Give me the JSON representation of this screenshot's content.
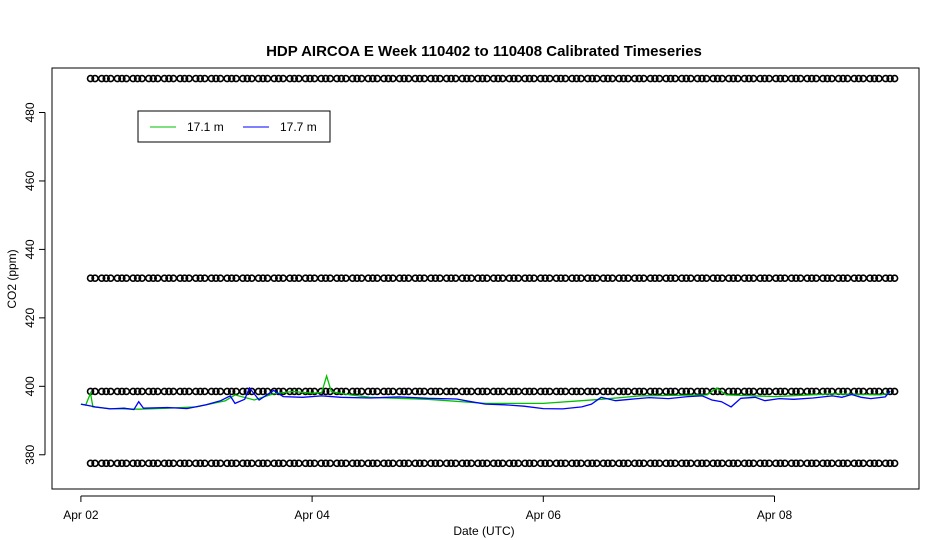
{
  "chart_data": {
    "type": "line",
    "title": "HDP AIRCOA E  Week 110402 to 110408  Calibrated Timeseries",
    "xlabel": "Date (UTC)",
    "ylabel": "CO2 (ppm)",
    "xlim": [
      "2011-04-01T18:00",
      "2011-04-09T06:00"
    ],
    "ylim": [
      370,
      493
    ],
    "x_ticks": [
      {
        "label": "Apr 02",
        "value": "2011-04-02T00:00"
      },
      {
        "label": "Apr 04",
        "value": "2011-04-04T00:00"
      },
      {
        "label": "Apr 06",
        "value": "2011-04-06T00:00"
      },
      {
        "label": "Apr 08",
        "value": "2011-04-08T00:00"
      }
    ],
    "y_ticks": [
      380,
      400,
      420,
      440,
      460,
      480
    ],
    "grid": false,
    "legend_position": "top-left",
    "series": [
      {
        "name": "17.1 m",
        "color": "#00c000",
        "style": "line",
        "points": [
          [
            "2011-04-02T00:00",
            394.8
          ],
          [
            "2011-04-02T01:00",
            394.5
          ],
          [
            "2011-04-02T02:00",
            398.0
          ],
          [
            "2011-04-02T02:30",
            394.0
          ],
          [
            "2011-04-02T06:00",
            393.5
          ],
          [
            "2011-04-02T12:00",
            393.3
          ],
          [
            "2011-04-02T18:00",
            393.6
          ],
          [
            "2011-04-03T00:00",
            394.0
          ],
          [
            "2011-04-03T06:00",
            395.8
          ],
          [
            "2011-04-03T08:00",
            397.5
          ],
          [
            "2011-04-03T12:00",
            396.0
          ],
          [
            "2011-04-03T16:00",
            397.8
          ],
          [
            "2011-04-03T20:00",
            398.5
          ],
          [
            "2011-04-04T00:00",
            398.0
          ],
          [
            "2011-04-04T02:00",
            398.2
          ],
          [
            "2011-04-04T03:00",
            403.0
          ],
          [
            "2011-04-04T04:00",
            398.4
          ],
          [
            "2011-04-04T08:00",
            397.5
          ],
          [
            "2011-04-04T12:00",
            396.8
          ],
          [
            "2011-04-05T00:00",
            396.2
          ],
          [
            "2011-04-05T12:00",
            395.0
          ],
          [
            "2011-04-06T00:00",
            395.0
          ],
          [
            "2011-04-06T12:00",
            396.2
          ],
          [
            "2011-04-06T20:00",
            397.2
          ],
          [
            "2011-04-07T10:00",
            397.5
          ],
          [
            "2011-04-07T12:00",
            399.5
          ],
          [
            "2011-04-07T14:00",
            397.5
          ],
          [
            "2011-04-08T00:00",
            397.0
          ],
          [
            "2011-04-08T12:00",
            397.8
          ],
          [
            "2011-04-08T22:00",
            397.5
          ],
          [
            "2011-04-09T00:00",
            398.0
          ]
        ]
      },
      {
        "name": "17.7 m",
        "color": "#0000ff",
        "style": "line",
        "points": [
          [
            "2011-04-02T00:00",
            394.8
          ],
          [
            "2011-04-02T03:00",
            394.0
          ],
          [
            "2011-04-02T06:00",
            393.4
          ],
          [
            "2011-04-02T09:00",
            393.6
          ],
          [
            "2011-04-02T11:00",
            393.2
          ],
          [
            "2011-04-02T12:00",
            395.5
          ],
          [
            "2011-04-02T13:00",
            393.6
          ],
          [
            "2011-04-02T18:00",
            393.8
          ],
          [
            "2011-04-02T22:00",
            393.5
          ],
          [
            "2011-04-03T02:00",
            394.6
          ],
          [
            "2011-04-03T05:00",
            395.8
          ],
          [
            "2011-04-03T07:00",
            397.2
          ],
          [
            "2011-04-03T08:00",
            395.0
          ],
          [
            "2011-04-03T10:00",
            396.2
          ],
          [
            "2011-04-03T11:00",
            399.5
          ],
          [
            "2011-04-03T13:00",
            396.0
          ],
          [
            "2011-04-03T16:00",
            398.8
          ],
          [
            "2011-04-03T18:00",
            397.0
          ],
          [
            "2011-04-03T22:00",
            396.8
          ],
          [
            "2011-04-04T02:00",
            397.2
          ],
          [
            "2011-04-04T06:00",
            396.8
          ],
          [
            "2011-04-04T12:00",
            396.6
          ],
          [
            "2011-04-04T18:00",
            396.9
          ],
          [
            "2011-04-05T00:00",
            396.5
          ],
          [
            "2011-04-05T06:00",
            396.3
          ],
          [
            "2011-04-05T09:00",
            395.5
          ],
          [
            "2011-04-05T12:00",
            394.8
          ],
          [
            "2011-04-05T16:00",
            394.6
          ],
          [
            "2011-04-05T20:00",
            394.2
          ],
          [
            "2011-04-06T00:00",
            393.5
          ],
          [
            "2011-04-06T04:00",
            393.4
          ],
          [
            "2011-04-06T08:00",
            394.0
          ],
          [
            "2011-04-06T10:00",
            394.8
          ],
          [
            "2011-04-06T12:00",
            396.8
          ],
          [
            "2011-04-06T15:00",
            395.8
          ],
          [
            "2011-04-06T18:00",
            396.2
          ],
          [
            "2011-04-06T22:00",
            396.7
          ],
          [
            "2011-04-07T02:00",
            396.4
          ],
          [
            "2011-04-07T06:00",
            397.0
          ],
          [
            "2011-04-07T09:00",
            397.2
          ],
          [
            "2011-04-07T11:00",
            396.0
          ],
          [
            "2011-04-07T13:00",
            395.5
          ],
          [
            "2011-04-07T15:00",
            394.0
          ],
          [
            "2011-04-07T17:00",
            396.5
          ],
          [
            "2011-04-07T20:00",
            396.8
          ],
          [
            "2011-04-07T22:00",
            395.8
          ],
          [
            "2011-04-08T01:00",
            396.4
          ],
          [
            "2011-04-08T04:00",
            396.2
          ],
          [
            "2011-04-08T08:00",
            396.6
          ],
          [
            "2011-04-08T12:00",
            397.2
          ],
          [
            "2011-04-08T14:00",
            396.8
          ],
          [
            "2011-04-08T16:00",
            397.6
          ],
          [
            "2011-04-08T18:00",
            396.8
          ],
          [
            "2011-04-08T20:00",
            396.4
          ],
          [
            "2011-04-08T23:00",
            396.9
          ],
          [
            "2011-04-09T00:00",
            398.6
          ]
        ]
      },
      {
        "name": "",
        "style": "points",
        "color": "#000000",
        "levels": [
          377.5,
          398.5,
          431.6,
          489.9
        ],
        "x_start": "2011-04-02T02:00",
        "x_end": "2011-04-09T00:00",
        "points_per_level": 52
      }
    ]
  }
}
